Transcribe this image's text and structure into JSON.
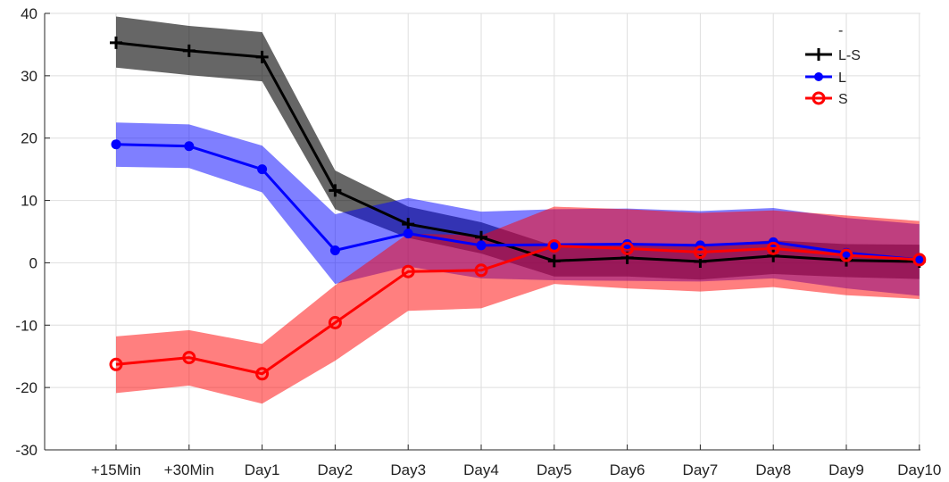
{
  "chart_data": {
    "type": "line",
    "categories": [
      "+15Min",
      "+30Min",
      "Day1",
      "Day2",
      "Day3",
      "Day4",
      "Day5",
      "Day6",
      "Day7",
      "Day8",
      "Day9",
      "Day10"
    ],
    "ylim": [
      -30,
      40
    ],
    "yticks": [
      -30,
      -20,
      -10,
      0,
      10,
      20,
      30,
      40
    ],
    "grid": true,
    "legend_position": "top-right",
    "legend_extra": "-",
    "series": [
      {
        "name": "L-S",
        "color": "#000000",
        "marker": "plus",
        "values": [
          35.3,
          34.0,
          33.0,
          11.6,
          6.2,
          4.1,
          0.3,
          0.8,
          0.2,
          1.1,
          0.4,
          0.2
        ],
        "band_upper": [
          39.5,
          38.0,
          37.0,
          14.8,
          9.0,
          6.5,
          2.7,
          3.2,
          2.8,
          3.6,
          3.0,
          2.9
        ],
        "band_lower": [
          31.3,
          30.1,
          29.1,
          8.6,
          4.0,
          1.5,
          -2.2,
          -2.2,
          -2.7,
          -1.8,
          -2.3,
          -2.6
        ],
        "band_color": "rgba(0,0,0,0.6)"
      },
      {
        "name": "L",
        "color": "#0000ff",
        "marker": "dot",
        "values": [
          19.0,
          18.7,
          15.0,
          2.0,
          4.7,
          2.8,
          2.9,
          3.0,
          2.8,
          3.3,
          1.6,
          0.5
        ],
        "band_upper": [
          22.5,
          22.2,
          18.8,
          7.8,
          10.4,
          8.2,
          8.6,
          8.7,
          8.3,
          8.8,
          7.2,
          6.2
        ],
        "band_lower": [
          15.4,
          15.2,
          11.3,
          -3.4,
          -0.6,
          -2.5,
          -2.8,
          -2.9,
          -3.0,
          -2.5,
          -4.1,
          -5.3
        ],
        "band_color": "rgba(0,0,255,0.5)"
      },
      {
        "name": "S",
        "color": "#ff0000",
        "marker": "circle",
        "values": [
          -16.3,
          -15.2,
          -17.8,
          -9.6,
          -1.4,
          -1.2,
          2.7,
          2.3,
          1.7,
          2.3,
          1.2,
          0.5
        ],
        "band_upper": [
          -11.8,
          -10.8,
          -13.0,
          -3.6,
          4.7,
          4.4,
          9.0,
          8.6,
          8.0,
          8.4,
          7.6,
          6.7
        ],
        "band_lower": [
          -20.9,
          -19.7,
          -22.6,
          -15.7,
          -7.7,
          -7.3,
          -3.4,
          -4.1,
          -4.6,
          -3.9,
          -5.2,
          -5.8
        ],
        "band_color": "rgba(255,0,0,0.5)"
      }
    ]
  }
}
